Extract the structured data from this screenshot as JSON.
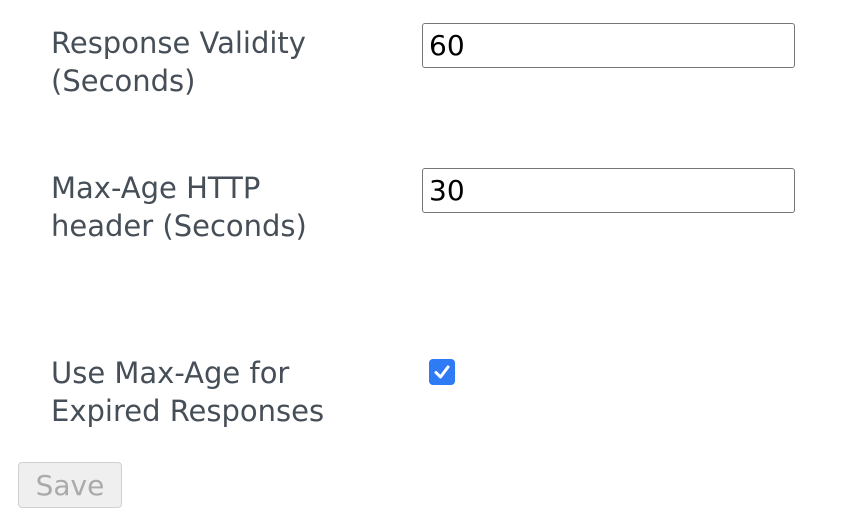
{
  "fields": [
    {
      "label": "Response Validity (Seconds)",
      "value": "60"
    },
    {
      "label": "Max-Age HTTP header (Seconds)",
      "value": "30"
    }
  ],
  "checkbox": {
    "label": "Use Max-Age for Expired Responses",
    "checked": true,
    "color": "#2f7bf5"
  },
  "save_label": "Save"
}
